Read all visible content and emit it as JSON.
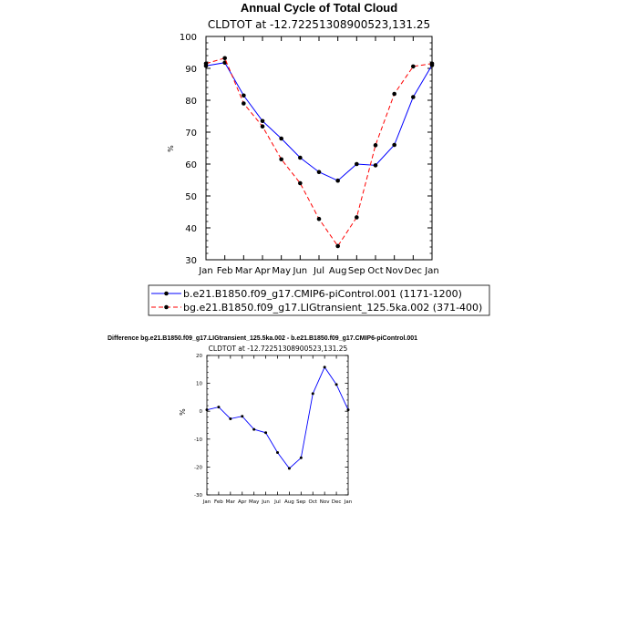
{
  "chart_data": [
    {
      "type": "line",
      "title": "Annual Cycle of Total Cloud",
      "subtitle": "CLDTOT at -12.72251308900523,131.25",
      "ylabel": "%",
      "ylim": [
        30,
        100
      ],
      "yticks": [
        "30",
        "40",
        "50",
        "60",
        "70",
        "80",
        "90",
        "100"
      ],
      "categories": [
        "Jan",
        "Feb",
        "Mar",
        "Apr",
        "May",
        "Jun",
        "Jul",
        "Aug",
        "Sep",
        "Oct",
        "Nov",
        "Dec",
        "Jan"
      ],
      "series": [
        {
          "name": "b.e21.B1850.f09_g17.CMIP6-piControl.001 (1171-1200)",
          "color": "#0000ff",
          "dash": "solid",
          "values": [
            90.8,
            91.8,
            81.5,
            73.5,
            68.0,
            62.0,
            57.5,
            54.8,
            60.0,
            59.6,
            66.0,
            81.0,
            91.0
          ]
        },
        {
          "name": "bg.e21.B1850.f09_g17.LIGtransient_125.5ka.002 (371-400)",
          "color": "#ff0000",
          "dash": "dashed",
          "values": [
            91.5,
            93.2,
            79.0,
            71.8,
            61.5,
            54.0,
            42.8,
            34.3,
            43.3,
            65.9,
            82.0,
            90.6,
            91.5
          ]
        }
      ]
    },
    {
      "type": "line",
      "title": "Difference bg.e21.B1850.f09_g17.LIGtransient_125.5ka.002 - b.e21.B1850.f09_g17.CMIP6-piControl.001",
      "subtitle": "CLDTOT at -12.72251308900523,131.25",
      "ylabel": "%",
      "ylim": [
        -30,
        20
      ],
      "yticks": [
        "-30",
        "-20",
        "-10",
        "0",
        "10",
        "20"
      ],
      "categories": [
        "Jan",
        "Feb",
        "Mar",
        "Apr",
        "May",
        "Jun",
        "Jul",
        "Aug",
        "Sep",
        "Oct",
        "Nov",
        "Dec",
        "Jan"
      ],
      "series": [
        {
          "name": "Difference",
          "color": "#0000ff",
          "values": [
            0.5,
            1.5,
            -2.7,
            -1.8,
            -6.5,
            -7.7,
            -14.8,
            -20.5,
            -16.7,
            6.3,
            15.8,
            9.6,
            0.5
          ]
        }
      ]
    }
  ]
}
